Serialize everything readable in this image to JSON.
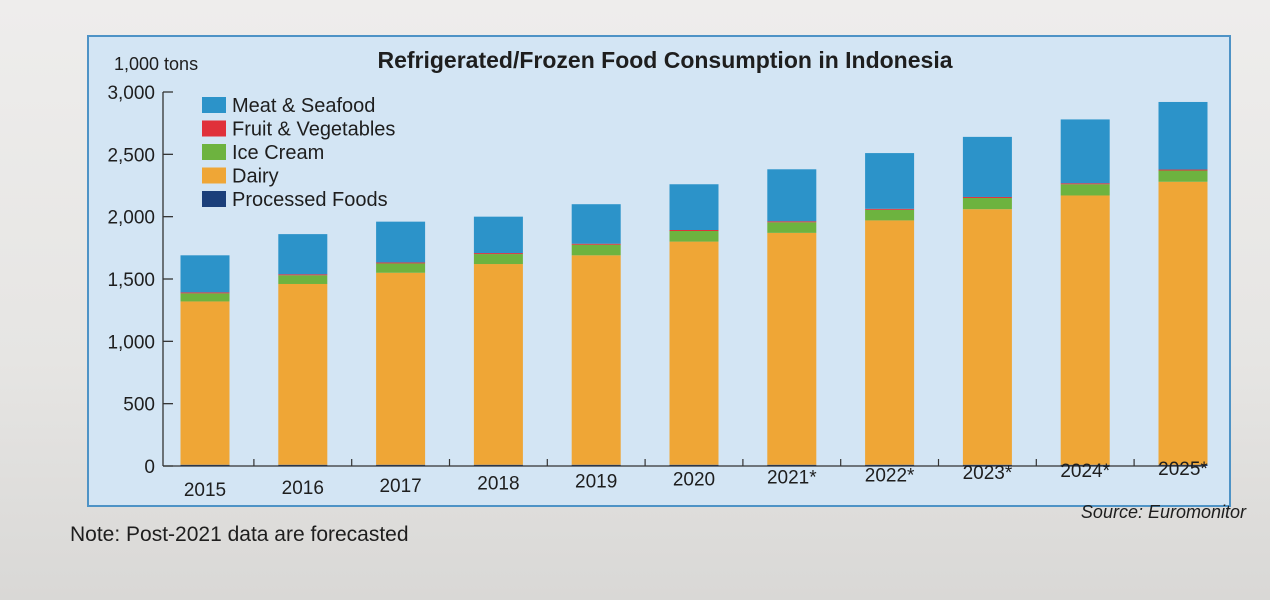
{
  "chart_data": {
    "type": "bar",
    "stacked": true,
    "title": "Refrigerated/Frozen Food Consumption in Indonesia",
    "ylabel": "1,000 tons",
    "ylim": [
      0,
      3000
    ],
    "yticks": [
      {
        "value": 0,
        "label": "0"
      },
      {
        "value": 500,
        "label": "500"
      },
      {
        "value": 1000,
        "label": "1,000"
      },
      {
        "value": 1500,
        "label": "1,500"
      },
      {
        "value": 2000,
        "label": "2,000"
      },
      {
        "value": 2500,
        "label": "2,500"
      },
      {
        "value": 3000,
        "label": "3,000"
      }
    ],
    "categories": [
      "2015",
      "2016",
      "2017",
      "2018",
      "2019",
      "2020",
      "2021*",
      "2022*",
      "2023*",
      "2024*",
      "2025*"
    ],
    "series": [
      {
        "name": "Processed Foods",
        "color": "#1b3f7a",
        "values": [
          10,
          10,
          10,
          10,
          10,
          10,
          10,
          10,
          10,
          10,
          10
        ]
      },
      {
        "name": "Dairy",
        "color": "#efa636",
        "values": [
          1310,
          1450,
          1540,
          1610,
          1680,
          1790,
          1860,
          1960,
          2050,
          2160,
          2270
        ]
      },
      {
        "name": "Ice Cream",
        "color": "#6db33f",
        "values": [
          65,
          70,
          75,
          80,
          85,
          85,
          85,
          85,
          90,
          90,
          90
        ]
      },
      {
        "name": "Fruit & Vegetables",
        "color": "#e0303a",
        "values": [
          8,
          8,
          8,
          8,
          8,
          8,
          8,
          8,
          8,
          8,
          8
        ]
      },
      {
        "name": "Meat & Seafood",
        "color": "#2c93c9",
        "values": [
          297,
          322,
          327,
          292,
          317,
          367,
          417,
          447,
          482,
          512,
          542
        ]
      }
    ],
    "legend": {
      "position": "top-left",
      "order": [
        "Meat & Seafood",
        "Fruit & Vegetables",
        "Ice Cream",
        "Dairy",
        "Processed Foods"
      ]
    },
    "note": "Note: Post-2021 data are forecasted",
    "source": "Source: Euromonitor"
  },
  "style": {
    "panel_background": "#d3e5f4",
    "panel_border": "#4e93c6",
    "text_color": "#1e1e1e"
  }
}
